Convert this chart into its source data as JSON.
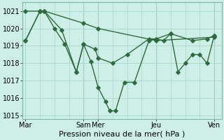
{
  "background_color": "#ceeee8",
  "grid_color": "#a8d8cc",
  "line_color": "#2d6b3c",
  "ylim": [
    1014.8,
    1021.5
  ],
  "yticks": [
    1015,
    1016,
    1017,
    1018,
    1019,
    1020,
    1021
  ],
  "xlabel": "Pression niveau de la mer( hPa )",
  "xlabel_fontsize": 8,
  "tick_fontsize": 7,
  "xtick_positions": [
    0,
    4,
    5,
    9,
    13
  ],
  "xtick_labels": [
    "Mar",
    "Sam",
    "Mer",
    "Jeu",
    "Ven"
  ],
  "vlines_dark": [
    4,
    5,
    9,
    13
  ],
  "xlim": [
    -0.2,
    13.5
  ],
  "series1_x": [
    0,
    1,
    1.3,
    4,
    5,
    9,
    13
  ],
  "series1_y": [
    1021.0,
    1021.0,
    1021.0,
    1020.3,
    1020.0,
    1019.3,
    1019.5
  ],
  "series2_x": [
    0,
    1,
    1.3,
    2.5,
    3.5,
    4.0,
    4.8,
    5.0,
    6.0,
    7.0,
    8.5,
    9.0,
    9.5,
    10.0,
    11.5,
    12.5,
    13.0
  ],
  "series2_y": [
    1019.3,
    1021.0,
    1021.0,
    1019.9,
    1017.5,
    1019.1,
    1018.8,
    1018.3,
    1018.0,
    1018.5,
    1019.4,
    1019.4,
    1019.3,
    1019.7,
    1019.3,
    1019.4,
    1019.6
  ],
  "series3_x": [
    0,
    1,
    1.3,
    2.0,
    2.7,
    3.5,
    4.0,
    4.5,
    5.0,
    5.5,
    5.8,
    6.2,
    6.8,
    7.5,
    8.5,
    9.0,
    10.0,
    10.5,
    11.0,
    11.5,
    12.0,
    12.5,
    13.0
  ],
  "series3_y": [
    1019.3,
    1021.0,
    1021.0,
    1020.0,
    1019.1,
    1017.5,
    1019.1,
    1018.1,
    1016.6,
    1015.8,
    1015.25,
    1015.25,
    1016.9,
    1016.9,
    1019.3,
    1019.4,
    1019.7,
    1017.5,
    1018.0,
    1018.5,
    1018.5,
    1018.0,
    1019.6
  ]
}
